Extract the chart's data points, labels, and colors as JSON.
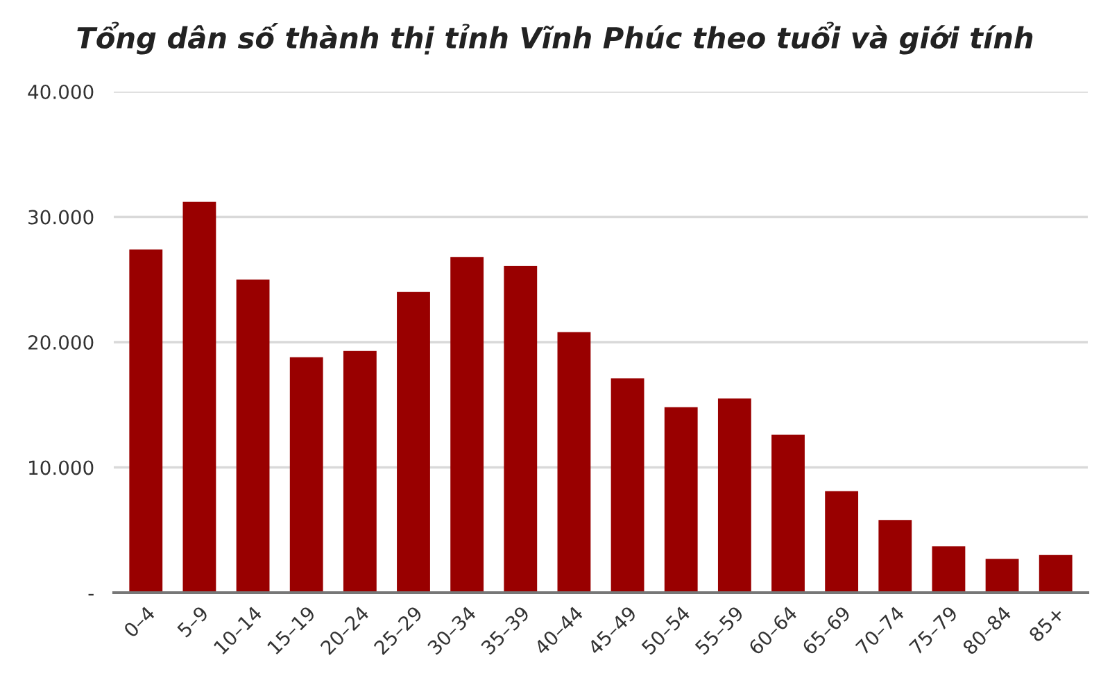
{
  "chart_data": {
    "type": "bar",
    "title": "Tổng dân số thành thị tỉnh Vĩnh Phúc theo tuổi và giới tính",
    "categories": [
      "0–4",
      "5–9",
      "10–14",
      "15–19",
      "20–24",
      "25–29",
      "30–34",
      "35–39",
      "40–44",
      "45–49",
      "50–54",
      "55–59",
      "60–64",
      "65–69",
      "70–74",
      "75–79",
      "80–84",
      "85+"
    ],
    "values": [
      27400,
      31200,
      25000,
      18800,
      19300,
      24000,
      26800,
      26100,
      20800,
      17100,
      14800,
      15500,
      12600,
      8100,
      5800,
      3700,
      2700,
      3000
    ],
    "color": "#990000",
    "ylim": [
      0,
      40000
    ],
    "yticks": [
      {
        "value": 0,
        "label": "-"
      },
      {
        "value": 10000,
        "label": "10.000"
      },
      {
        "value": 20000,
        "label": "20.000"
      },
      {
        "value": 30000,
        "label": "30.000"
      },
      {
        "value": 40000,
        "label": "40.000"
      }
    ],
    "grid": "y",
    "legend": false
  }
}
